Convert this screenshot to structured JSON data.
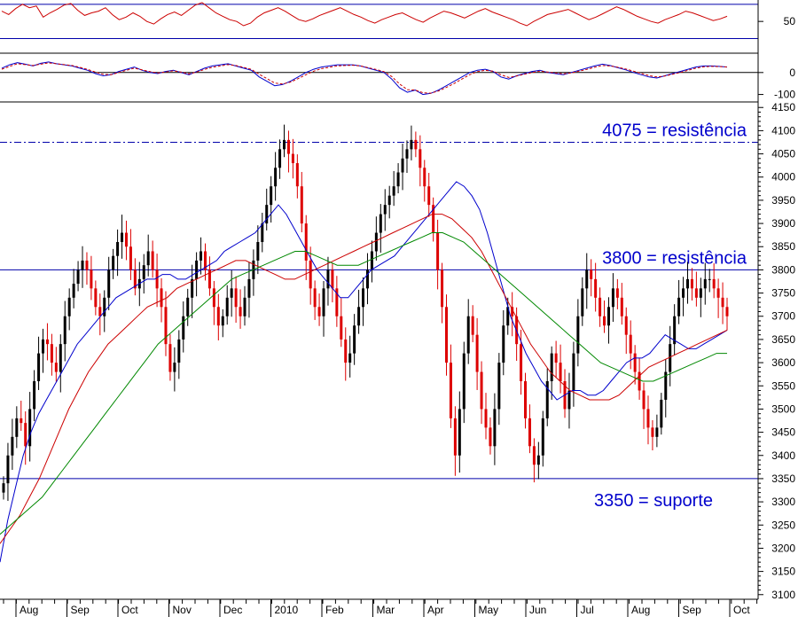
{
  "chart_data": [
    {
      "type": "line",
      "panel": "oscillator-top",
      "yticks": [
        50
      ],
      "levels": [
        70,
        30
      ],
      "ylim": [
        15,
        75
      ],
      "series": [
        {
          "color": "#cc0000",
          "values": [
            62,
            58,
            65,
            70,
            66,
            68,
            55,
            60,
            64,
            69,
            71,
            63,
            57,
            60,
            62,
            66,
            58,
            52,
            55,
            60,
            56,
            50,
            47,
            53,
            58,
            61,
            57,
            63,
            69,
            72,
            66,
            60,
            56,
            52,
            50,
            45,
            48,
            55,
            60,
            63,
            66,
            62,
            57,
            52,
            50,
            53,
            57,
            60,
            63,
            66,
            62,
            58,
            55,
            51,
            48,
            52,
            55,
            58,
            60,
            56,
            52,
            49,
            54,
            58,
            62,
            60,
            57,
            54,
            58,
            62,
            65,
            61,
            58,
            55,
            52,
            48,
            45,
            50,
            54,
            58,
            60,
            62,
            64,
            60,
            56,
            52,
            55,
            59,
            63,
            67,
            64,
            60,
            56,
            53,
            50,
            48,
            52,
            55,
            58,
            62,
            60,
            57,
            54,
            51,
            53,
            56
          ]
        }
      ]
    },
    {
      "type": "line",
      "panel": "oscillator-middle",
      "yticks": [
        0,
        -100
      ],
      "ylim": [
        -130,
        80
      ],
      "series": [
        {
          "color": "#0000cc",
          "values": [
            20,
            35,
            45,
            38,
            30,
            42,
            48,
            40,
            35,
            30,
            20,
            10,
            -5,
            -15,
            -10,
            5,
            15,
            25,
            10,
            0,
            -5,
            5,
            10,
            0,
            -10,
            5,
            20,
            30,
            35,
            40,
            30,
            20,
            10,
            -20,
            -40,
            -60,
            -55,
            -40,
            -20,
            0,
            15,
            25,
            30,
            35,
            35,
            35,
            30,
            20,
            10,
            0,
            -30,
            -70,
            -90,
            -80,
            -100,
            -95,
            -80,
            -60,
            -40,
            -20,
            0,
            10,
            15,
            5,
            -20,
            -30,
            -15,
            -5,
            5,
            10,
            0,
            -5,
            -10,
            0,
            10,
            20,
            30,
            38,
            32,
            22,
            12,
            0,
            -10,
            -20,
            -25,
            -15,
            -5,
            5,
            15,
            25,
            30,
            30,
            28,
            25
          ]
        },
        {
          "color": "#cc0000",
          "values": [
            15,
            28,
            40,
            36,
            32,
            38,
            44,
            40,
            36,
            32,
            24,
            14,
            2,
            -8,
            -10,
            0,
            10,
            20,
            12,
            4,
            -2,
            2,
            8,
            2,
            -6,
            2,
            14,
            24,
            30,
            36,
            32,
            24,
            14,
            -8,
            -28,
            -48,
            -52,
            -44,
            -28,
            -10,
            6,
            18,
            24,
            30,
            32,
            33,
            30,
            22,
            14,
            4,
            -18,
            -52,
            -78,
            -80,
            -92,
            -94,
            -84,
            -68,
            -50,
            -30,
            -10,
            4,
            10,
            6,
            -10,
            -22,
            -16,
            -8,
            0,
            6,
            2,
            -2,
            -6,
            -2,
            6,
            14,
            24,
            32,
            30,
            24,
            16,
            6,
            -4,
            -14,
            -20,
            -16,
            -8,
            0,
            10,
            20,
            26,
            28,
            27,
            25
          ]
        }
      ]
    },
    {
      "type": "candlestick",
      "panel": "price",
      "ylim": [
        3090,
        4160
      ],
      "yticks": [
        4150,
        4100,
        4050,
        4000,
        3950,
        3900,
        3850,
        3800,
        3750,
        3700,
        3650,
        3600,
        3550,
        3500,
        3450,
        3400,
        3350,
        3300,
        3250,
        3200,
        3150,
        3100
      ],
      "xticks": [
        "Aug",
        "Sep",
        "Oct",
        "Nov",
        "Dec",
        "2010",
        "Feb",
        "Mar",
        "Apr",
        "May",
        "Jun",
        "Jul",
        "Aug",
        "Sep",
        "Oct"
      ],
      "close": [
        3340,
        3400,
        3440,
        3480,
        3470,
        3420,
        3500,
        3560,
        3620,
        3650,
        3640,
        3600,
        3580,
        3640,
        3700,
        3740,
        3770,
        3800,
        3820,
        3800,
        3760,
        3720,
        3700,
        3740,
        3800,
        3830,
        3860,
        3880,
        3850,
        3800,
        3760,
        3780,
        3810,
        3840,
        3800,
        3760,
        3720,
        3640,
        3580,
        3600,
        3650,
        3700,
        3740,
        3780,
        3820,
        3840,
        3800,
        3760,
        3720,
        3680,
        3700,
        3740,
        3760,
        3720,
        3700,
        3740,
        3780,
        3820,
        3860,
        3900,
        3940,
        3980,
        4020,
        4060,
        4080,
        4050,
        4030,
        3980,
        3900,
        3820,
        3760,
        3720,
        3700,
        3760,
        3800,
        3760,
        3700,
        3650,
        3600,
        3620,
        3680,
        3720,
        3760,
        3800,
        3840,
        3880,
        3920,
        3940,
        3960,
        3980,
        4010,
        4040,
        4060,
        4080,
        4060,
        4020,
        3980,
        3940,
        3880,
        3800,
        3720,
        3600,
        3480,
        3400,
        3500,
        3620,
        3700,
        3660,
        3580,
        3500,
        3460,
        3420,
        3500,
        3600,
        3680,
        3720,
        3700,
        3640,
        3560,
        3480,
        3420,
        3380,
        3400,
        3480,
        3560,
        3620,
        3600,
        3560,
        3500,
        3540,
        3620,
        3700,
        3760,
        3800,
        3780,
        3740,
        3700,
        3680,
        3720,
        3760,
        3740,
        3700,
        3660,
        3620,
        3580,
        3540,
        3500,
        3460,
        3440,
        3460,
        3520,
        3580,
        3640,
        3700,
        3740,
        3760,
        3780,
        3760,
        3740,
        3760,
        3780,
        3780,
        3760,
        3740,
        3720,
        3700
      ]
    },
    {
      "type": "line",
      "panel": "price-overlay",
      "series": [
        {
          "color": "#0000cc",
          "values": [
            3170,
            3260,
            3330,
            3400,
            3450,
            3490,
            3520,
            3550,
            3580,
            3610,
            3640,
            3660,
            3680,
            3700,
            3720,
            3740,
            3750,
            3760,
            3770,
            3780,
            3780,
            3790,
            3790,
            3780,
            3780,
            3790,
            3800,
            3810,
            3820,
            3840,
            3850,
            3860,
            3870,
            3880,
            3900,
            3920,
            3940,
            3920,
            3890,
            3860,
            3830,
            3800,
            3780,
            3760,
            3740,
            3740,
            3760,
            3780,
            3800,
            3810,
            3820,
            3830,
            3850,
            3870,
            3890,
            3910,
            3930,
            3950,
            3970,
            3990,
            3980,
            3960,
            3930,
            3880,
            3820,
            3760,
            3700,
            3660,
            3620,
            3590,
            3560,
            3540,
            3520,
            3530,
            3540,
            3540,
            3530,
            3530,
            3540,
            3560,
            3580,
            3600,
            3610,
            3610,
            3620,
            3640,
            3660,
            3650,
            3640,
            3630,
            3630,
            3640,
            3650,
            3660,
            3670
          ]
        },
        {
          "color": "#cc0000",
          "values": [
            3210,
            3240,
            3270,
            3310,
            3350,
            3400,
            3450,
            3500,
            3540,
            3580,
            3610,
            3640,
            3660,
            3680,
            3700,
            3720,
            3730,
            3740,
            3760,
            3770,
            3780,
            3790,
            3800,
            3810,
            3820,
            3820,
            3810,
            3800,
            3790,
            3780,
            3780,
            3790,
            3800,
            3810,
            3820,
            3830,
            3840,
            3850,
            3860,
            3870,
            3880,
            3890,
            3900,
            3910,
            3920,
            3920,
            3910,
            3890,
            3870,
            3840,
            3800,
            3760,
            3720,
            3680,
            3640,
            3610,
            3580,
            3560,
            3540,
            3530,
            3520,
            3520,
            3520,
            3530,
            3550,
            3570,
            3590,
            3600,
            3610,
            3620,
            3630,
            3640,
            3650,
            3660,
            3670
          ]
        },
        {
          "color": "#008800",
          "values": [
            3230,
            3250,
            3270,
            3290,
            3310,
            3340,
            3370,
            3400,
            3430,
            3460,
            3490,
            3520,
            3550,
            3580,
            3610,
            3640,
            3660,
            3680,
            3700,
            3720,
            3740,
            3760,
            3780,
            3790,
            3800,
            3810,
            3820,
            3830,
            3840,
            3840,
            3830,
            3820,
            3810,
            3810,
            3810,
            3820,
            3830,
            3840,
            3850,
            3860,
            3870,
            3880,
            3880,
            3870,
            3860,
            3840,
            3820,
            3800,
            3780,
            3760,
            3740,
            3720,
            3700,
            3680,
            3660,
            3640,
            3620,
            3600,
            3590,
            3580,
            3570,
            3560,
            3560,
            3570,
            3580,
            3590,
            3600,
            3610,
            3620,
            3620
          ]
        }
      ],
      "lines": [
        {
          "value": 4075,
          "style": "dashdot",
          "label": "4075 = resistência",
          "label_pos": "above-right"
        },
        {
          "value": 3800,
          "style": "solid",
          "label": "3800 = resistência",
          "label_pos": "above-right"
        },
        {
          "value": 3350,
          "style": "solid",
          "label": "3350 = suporte",
          "label_pos": "below-right"
        }
      ]
    }
  ],
  "colors": {
    "up": "#000000",
    "down": "#dd0000",
    "guide": "#0000aa",
    "annotation": "#0000cc"
  }
}
